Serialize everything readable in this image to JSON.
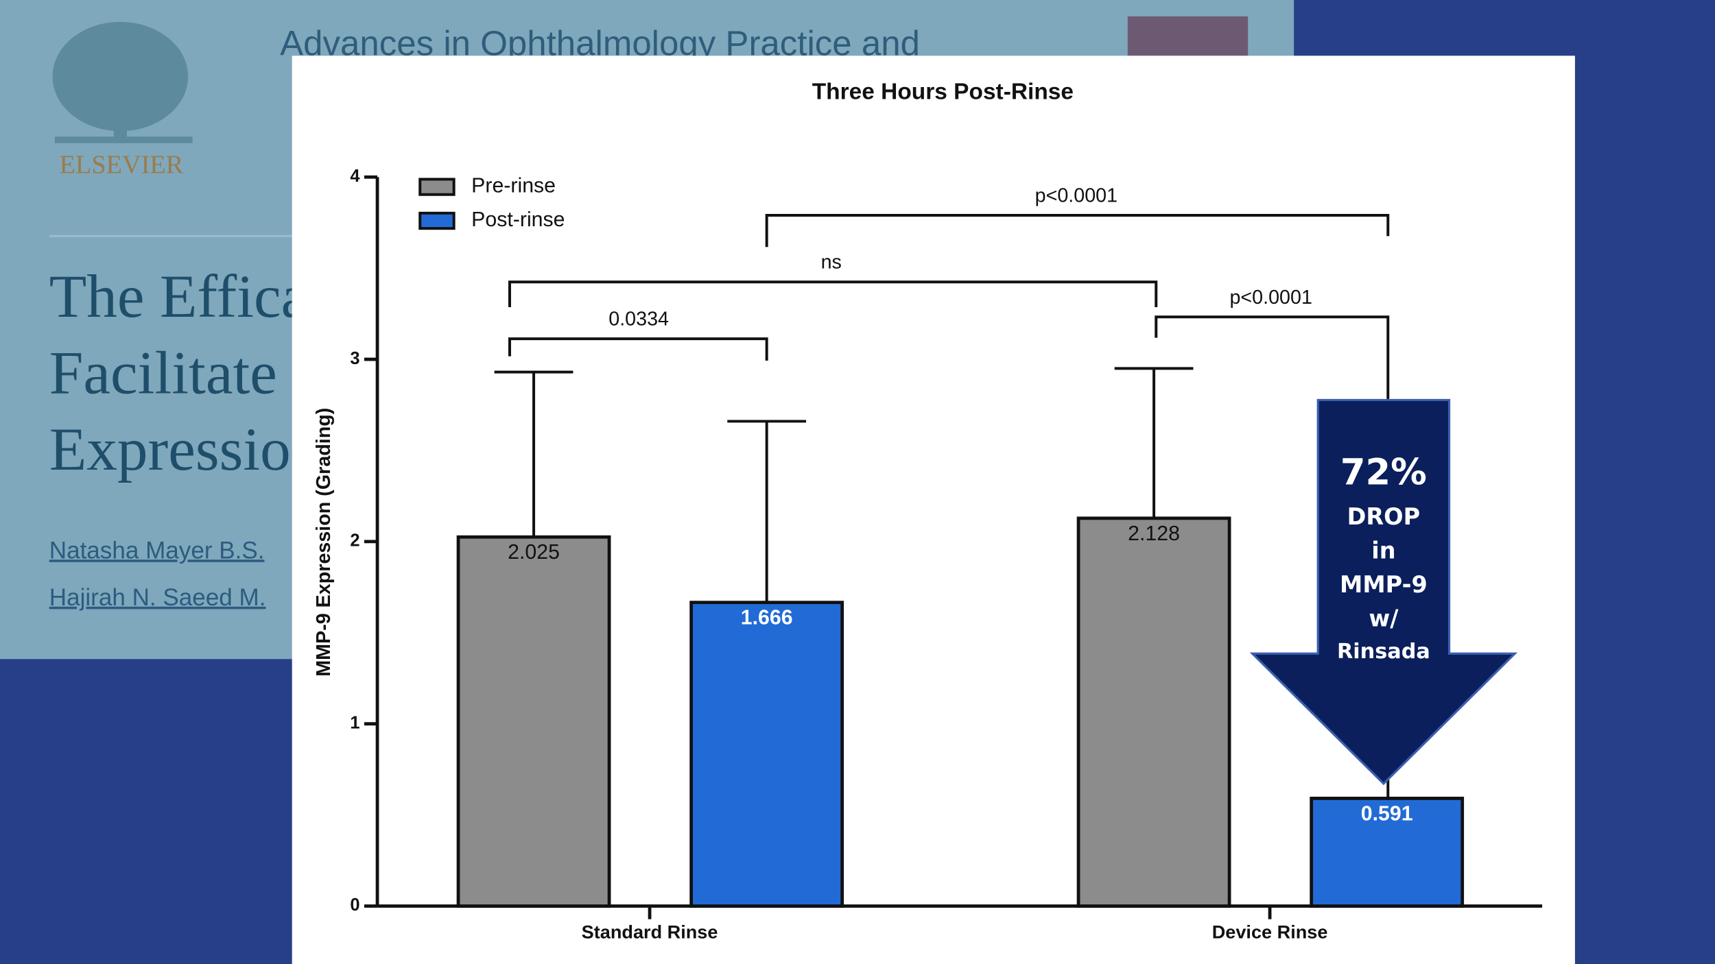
{
  "slide": {
    "journal": "Advances in Ophthalmology Practice and",
    "publisher": "ELSEVIER",
    "title_lines": [
      "The Effica",
      "Facilitate",
      "Expressio"
    ],
    "authors": [
      "Natasha Mayer B.S.",
      "Hajirah N. Saeed M."
    ]
  },
  "chart_data": {
    "type": "bar",
    "title": "Three Hours Post-Rinse",
    "y_label": "MMP-9 Expression (Grading)",
    "categories": [
      "Standard Rinse",
      "Device Rinse"
    ],
    "series": [
      {
        "name": "Pre-rinse",
        "color": "#8c8c8c",
        "values": [
          2.025,
          2.128
        ],
        "errors": [
          0.905,
          0.822
        ]
      },
      {
        "name": "Post-rinse",
        "color": "#226bd6",
        "values": [
          1.666,
          0.591
        ],
        "errors": [
          0.994,
          null
        ]
      }
    ],
    "ylim": [
      0,
      4
    ],
    "yticks": [
      0,
      1,
      2,
      3,
      4
    ],
    "legend": "top-left",
    "annotations": [
      "0.0334",
      "ns",
      "p<0.0001",
      "p<0.0001"
    ],
    "callout": [
      "72%",
      "DROP",
      "in",
      "MMP-9",
      "w/",
      "Rinsada"
    ]
  }
}
